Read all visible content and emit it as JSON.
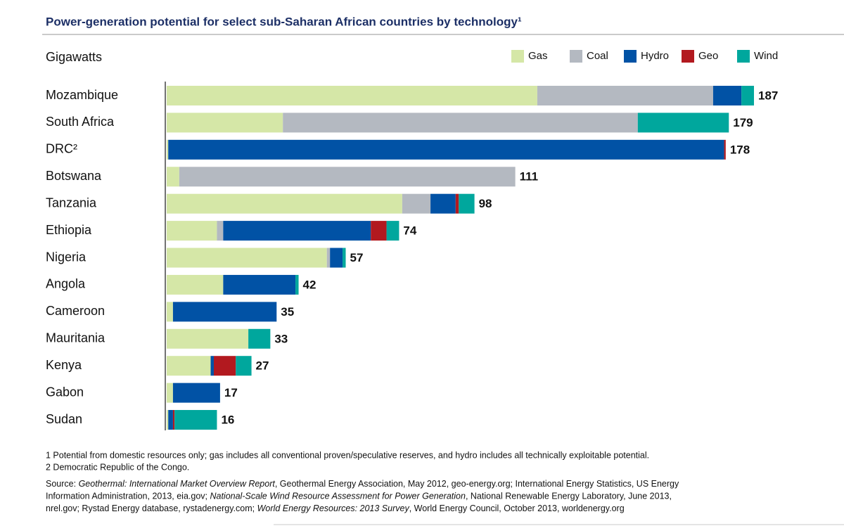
{
  "chart_data": {
    "type": "stacked-bar-horizontal",
    "title": "Power-generation potential for select sub-Saharan African countries by technology¹",
    "unit_label": "Gigawatts",
    "categories": [
      "Mozambique",
      "South Africa",
      "DRC²",
      "Botswana",
      "Tanzania",
      "Ethiopia",
      "Nigeria",
      "Angola",
      "Cameroon",
      "Mauritania",
      "Kenya",
      "Gabon",
      "Sudan"
    ],
    "series": [
      {
        "name": "Gas",
        "color": "#d5e7a7",
        "values": [
          118,
          37,
          0.5,
          4,
          75,
          16,
          51,
          18,
          2,
          26,
          14,
          2,
          0.5
        ]
      },
      {
        "name": "Coal",
        "color": "#b4b9c1",
        "values": [
          56,
          113,
          0,
          107,
          9,
          2,
          1,
          0,
          0,
          0,
          0,
          0,
          0
        ]
      },
      {
        "name": "Hydro",
        "color": "#0152a5",
        "values": [
          9,
          0,
          177,
          0,
          8,
          47,
          4,
          23,
          33,
          0,
          1,
          15,
          1.5
        ]
      },
      {
        "name": "Geo",
        "color": "#b2191f",
        "values": [
          0,
          0,
          0.5,
          0,
          1,
          5,
          0,
          0,
          0,
          0,
          7,
          0,
          0.5
        ]
      },
      {
        "name": "Wind",
        "color": "#00a79d",
        "values": [
          4,
          29,
          0,
          0,
          5,
          4,
          1,
          1,
          0,
          7,
          5,
          0,
          13.5
        ]
      }
    ],
    "totals": [
      187,
      179,
      178,
      111,
      98,
      74,
      57,
      42,
      35,
      33,
      27,
      17,
      16
    ],
    "legend": "top-right",
    "footnotes": [
      "1 Potential from domestic resources only; gas includes all conventional proven/speculative reserves, and hydro includes all technically exploitable potential.",
      "2 Democratic Republic of the Congo."
    ],
    "source_lines": [
      [
        "Source: ",
        "Geothermal: International Market Overview Report",
        ", Geothermal Energy Association, May 2012, geo-energy.org; International Energy Statistics, US Energy"
      ],
      [
        "Information Administration, 2013, eia.gov; ",
        "National-Scale Wind Resource Assessment for Power Generation",
        ", National Renewable Energy Laboratory, June 2013,"
      ],
      [
        "nrel.gov; Rystad Energy database, rystadenergy.com; ",
        "World Energy Resources: 2013 Survey",
        ", World Energy Council, October 2013, worldenergy.org"
      ]
    ]
  }
}
